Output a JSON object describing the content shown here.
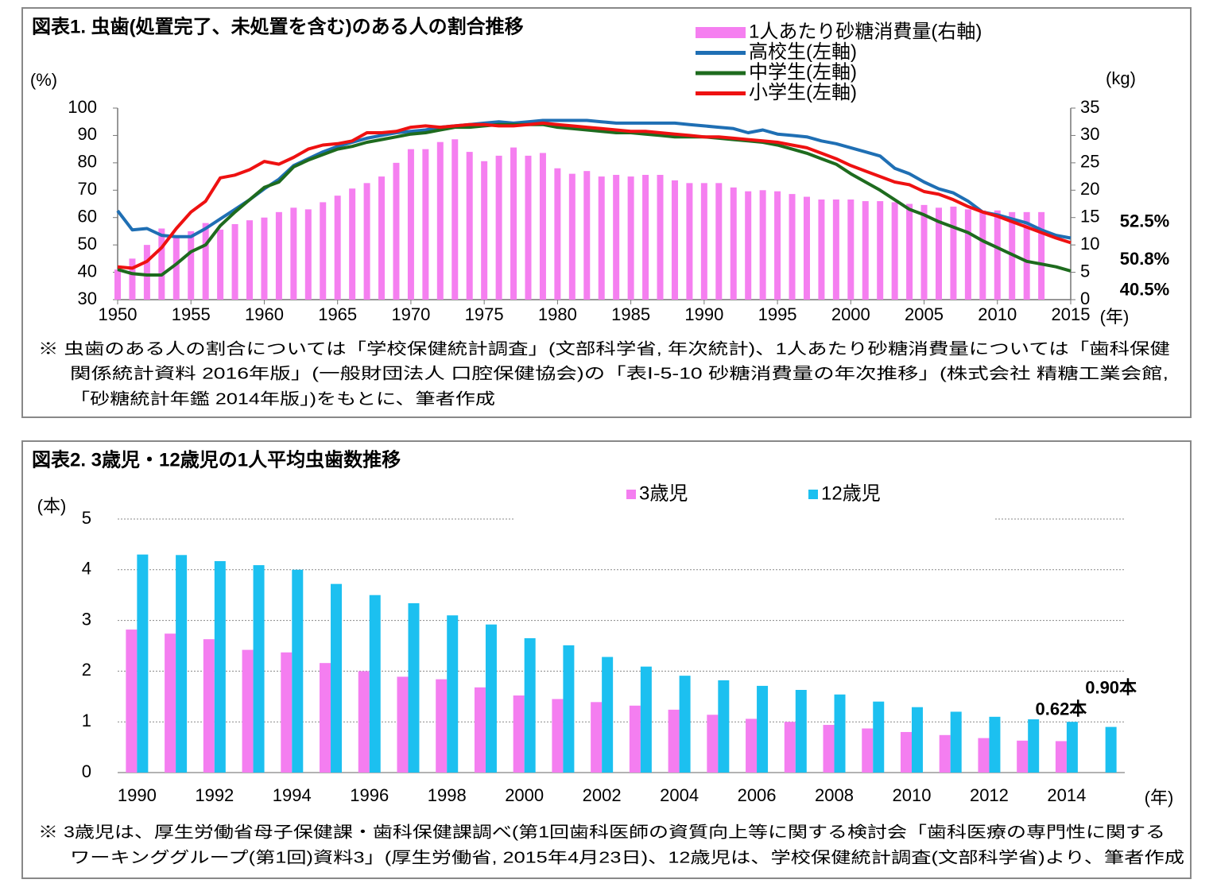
{
  "chart_data": [
    {
      "type": "combo",
      "title": "図表1. 虫歯(処置完了、未処置を含む)のある人の割合推移",
      "y_label": "(%)",
      "y2_label": "(kg)",
      "x_label": "(年)",
      "x": [
        1950,
        1951,
        1952,
        1953,
        1954,
        1955,
        1956,
        1957,
        1958,
        1959,
        1960,
        1961,
        1962,
        1963,
        1964,
        1965,
        1966,
        1967,
        1968,
        1969,
        1970,
        1971,
        1972,
        1973,
        1974,
        1975,
        1976,
        1977,
        1978,
        1979,
        1980,
        1981,
        1982,
        1983,
        1984,
        1985,
        1986,
        1987,
        1988,
        1989,
        1990,
        1991,
        1992,
        1993,
        1994,
        1995,
        1996,
        1997,
        1998,
        1999,
        2000,
        2001,
        2002,
        2003,
        2004,
        2005,
        2006,
        2007,
        2008,
        2009,
        2010,
        2011,
        2012,
        2013,
        2014,
        2015
      ],
      "xlim": [
        1950,
        2015
      ],
      "xticks": [
        1950,
        1955,
        1960,
        1965,
        1970,
        1975,
        1980,
        1985,
        1990,
        1995,
        2000,
        2005,
        2010,
        2015
      ],
      "ylim": [
        30,
        100
      ],
      "yticks": [
        30,
        40,
        50,
        60,
        70,
        80,
        90,
        100
      ],
      "y2lim": [
        0,
        35
      ],
      "y2ticks": [
        0,
        5,
        10,
        15,
        20,
        25,
        30,
        35
      ],
      "series": [
        {
          "name": "1人あたり砂糖消費量(右軸)",
          "color": "#f57ff0",
          "axis": "y2",
          "values": [
            5.5,
            7.5,
            10,
            13,
            11.5,
            12.5,
            14,
            12.8,
            13.8,
            14.5,
            15,
            16,
            16.8,
            16.5,
            17.8,
            19,
            20.3,
            21.3,
            22.5,
            25,
            27.5,
            27.5,
            28.8,
            29.3,
            27,
            25.3,
            26.3,
            27.8,
            26.3,
            26.8,
            24,
            23,
            23.5,
            22.5,
            22.8,
            22.5,
            22.8,
            22.8,
            21.8,
            21.3,
            21.3,
            21.3,
            20.5,
            19.8,
            20,
            19.8,
            19.3,
            18.8,
            18.3,
            18.3,
            18.3,
            18,
            18,
            17.8,
            17.5,
            17.3,
            16.8,
            17,
            16.5,
            16.3,
            16.3,
            16,
            16,
            16,
            null,
            null
          ]
        },
        {
          "name": "高校生(左軸)",
          "color": "#1f6fb4",
          "end_label": "52.5%",
          "end_label_color": "#1f3f6f",
          "values": [
            62.5,
            55.5,
            56,
            53.5,
            53,
            53,
            56,
            59.5,
            63,
            66.5,
            70.5,
            74,
            79,
            81.5,
            84,
            86,
            87.5,
            89,
            90,
            91,
            91.5,
            92,
            93,
            93.5,
            94,
            94.5,
            95,
            94.5,
            95,
            95.5,
            95.5,
            95.5,
            95.5,
            95,
            94.5,
            94.5,
            94.5,
            94.5,
            94.5,
            94,
            93.5,
            93,
            92.5,
            91,
            92,
            90.5,
            90,
            89.5,
            88,
            87,
            85.5,
            84,
            82.5,
            78,
            76,
            73,
            70.5,
            69,
            66,
            62,
            61,
            59.5,
            58,
            55.5,
            53.5,
            52.5
          ]
        },
        {
          "name": "中学生(左軸)",
          "color": "#1e6b1e",
          "end_label": "40.5%",
          "end_label_color": "#4f6228",
          "values": [
            41,
            39.5,
            39,
            39,
            43,
            47.5,
            50,
            57,
            62,
            66.5,
            71,
            73,
            78.5,
            81,
            83,
            85,
            86,
            87.5,
            88.5,
            89.5,
            90.5,
            91,
            92,
            93,
            93,
            93.5,
            94,
            94,
            94,
            94,
            93,
            92.5,
            92,
            91.5,
            91,
            91,
            90.5,
            90,
            89.5,
            89.5,
            89.5,
            89,
            88.5,
            88,
            87.5,
            86.5,
            85,
            83.5,
            81.5,
            79.5,
            76,
            73,
            70,
            66.5,
            63,
            61,
            58.5,
            56.5,
            54.5,
            51.5,
            49,
            46.5,
            44,
            43,
            42,
            40.5
          ]
        },
        {
          "name": "小学生(左軸)",
          "color": "#ee1111",
          "end_label": "50.8%",
          "end_label_color": "#ee1111",
          "values": [
            42,
            41.5,
            44,
            49,
            56,
            62,
            66,
            74.5,
            75.5,
            77.5,
            80.5,
            79.5,
            82,
            85,
            86.5,
            87,
            88,
            91,
            91,
            91.5,
            93,
            93.5,
            93,
            93.5,
            94,
            94,
            93.5,
            93.5,
            94,
            94.5,
            94,
            93.5,
            93,
            92.5,
            92,
            91.5,
            91.5,
            91,
            90.5,
            90,
            89.5,
            89.5,
            89,
            88.5,
            88,
            87.5,
            86.5,
            85.5,
            83.5,
            81.5,
            79,
            77,
            75,
            73,
            72,
            69.5,
            68.5,
            66.5,
            64,
            62,
            60.5,
            58.5,
            56.5,
            54.5,
            52.5,
            50.8
          ]
        }
      ],
      "note": [
        "※ 虫歯のある人の割合については「学校保健統計調査」(文部科学省, 年次統計)、1人あたり砂糖消費量については「歯科保健",
        "関係統計資料 2016年版」(一般財団法人 口腔保健協会)の「表Ⅰ-5-10 砂糖消費量の年次推移」(株式会社 精糖工業会館,",
        "「砂糖統計年鑑 2014年版」)をもとに、筆者作成"
      ]
    },
    {
      "type": "bar",
      "title": "図表2. 3歳児・12歳児の1人平均虫歯数推移",
      "y_label": "(本)",
      "x_label": "(年)",
      "x": [
        1990,
        1991,
        1992,
        1993,
        1994,
        1995,
        1996,
        1997,
        1998,
        1999,
        2000,
        2001,
        2002,
        2003,
        2004,
        2005,
        2006,
        2007,
        2008,
        2009,
        2010,
        2011,
        2012,
        2013,
        2014,
        2015
      ],
      "xlim": [
        1989.5,
        2015.5
      ],
      "xticks": [
        1990,
        1992,
        1994,
        1996,
        1998,
        2000,
        2002,
        2004,
        2006,
        2008,
        2010,
        2012,
        2014
      ],
      "ylim": [
        0,
        5
      ],
      "yticks": [
        0,
        1,
        2,
        3,
        4,
        5
      ],
      "grid": true,
      "series": [
        {
          "name": "3歳児",
          "color": "#f47ef0",
          "end_label": "0.62本",
          "end_label_color": "#ee1111",
          "values": [
            2.82,
            2.74,
            2.63,
            2.42,
            2.37,
            2.16,
            2.0,
            1.89,
            1.84,
            1.68,
            1.52,
            1.45,
            1.39,
            1.32,
            1.24,
            1.14,
            1.06,
            1.0,
            0.94,
            0.87,
            0.8,
            0.74,
            0.68,
            0.63,
            0.62,
            null
          ]
        },
        {
          "name": "12歳児",
          "color": "#1cc0f0",
          "end_label": "0.90本",
          "end_label_color": "#1f3864",
          "values": [
            4.3,
            4.29,
            4.17,
            4.09,
            4.0,
            3.72,
            3.5,
            3.34,
            3.1,
            2.92,
            2.65,
            2.51,
            2.28,
            2.09,
            1.91,
            1.82,
            1.71,
            1.63,
            1.54,
            1.4,
            1.29,
            1.2,
            1.1,
            1.05,
            1.0,
            0.9
          ]
        }
      ],
      "note": [
        "※ 3歳児は、厚生労働省母子保健課・歯科保健課調べ(第1回歯科医師の資質向上等に関する検討会「歯科医療の専門性に関する",
        "ワーキンググループ(第1回)資料3」(厚生労働省, 2015年4月23日)、12歳児は、学校保健統計調査(文部科学省)より、筆者作成"
      ]
    }
  ]
}
